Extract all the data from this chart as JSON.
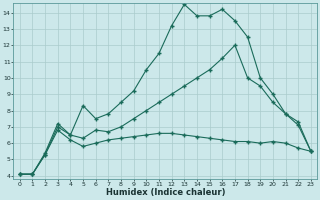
{
  "xlabel": "Humidex (Indice chaleur)",
  "bg_color": "#cce8ea",
  "grid_color": "#aacccc",
  "line_color": "#1a6b5a",
  "xlim": [
    -0.5,
    23.5
  ],
  "ylim": [
    3.8,
    14.6
  ],
  "yticks": [
    4,
    5,
    6,
    7,
    8,
    9,
    10,
    11,
    12,
    13,
    14
  ],
  "xticks": [
    0,
    1,
    2,
    3,
    4,
    5,
    6,
    7,
    8,
    9,
    10,
    11,
    12,
    13,
    14,
    15,
    16,
    17,
    18,
    19,
    20,
    21,
    22,
    23
  ],
  "series": [
    [
      4.1,
      4.1,
      5.4,
      7.2,
      6.5,
      8.3,
      7.5,
      7.8,
      8.5,
      9.2,
      10.5,
      11.5,
      13.2,
      14.5,
      13.8,
      13.8,
      14.2,
      13.5,
      12.5,
      10.0,
      9.0,
      7.8,
      7.1,
      5.5
    ],
    [
      4.1,
      4.1,
      5.3,
      7.0,
      6.5,
      6.3,
      6.8,
      6.7,
      7.0,
      7.5,
      8.0,
      8.5,
      9.0,
      9.5,
      10.0,
      10.5,
      11.2,
      12.0,
      10.0,
      9.5,
      8.5,
      7.8,
      7.3,
      5.5
    ],
    [
      4.1,
      4.1,
      5.3,
      6.8,
      6.2,
      5.8,
      6.0,
      6.2,
      6.3,
      6.4,
      6.5,
      6.6,
      6.6,
      6.5,
      6.4,
      6.3,
      6.2,
      6.1,
      6.1,
      6.0,
      6.1,
      6.0,
      5.7,
      5.5
    ]
  ]
}
